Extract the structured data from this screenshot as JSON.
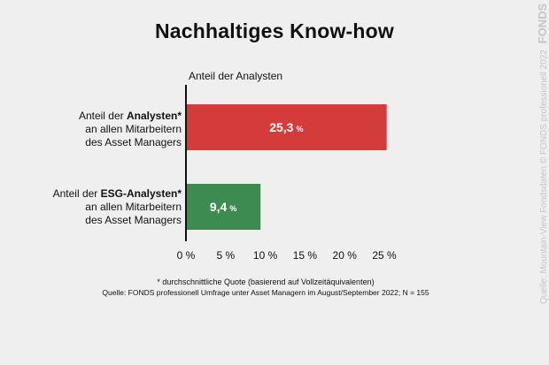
{
  "title": "Nachhaltiges Know-how",
  "chart_data": {
    "type": "bar",
    "orientation": "horizontal",
    "subtitle": "Anteil der Analysten",
    "categories": [
      {
        "prefix": "Anteil der ",
        "bold": "Analysten*",
        "line2": "an allen Mitarbeitern",
        "line3": "des Asset Managers"
      },
      {
        "prefix": "Anteil der ",
        "bold": "ESG-Analysten*",
        "line2": "an allen Mitarbeitern",
        "line3": "des Asset Managers"
      }
    ],
    "values": [
      25.3,
      9.4
    ],
    "value_labels": [
      "25,3",
      "9,4"
    ],
    "unit": "%",
    "colors": [
      "#d43b3b",
      "#3e8b52"
    ],
    "xlim": [
      0,
      25
    ],
    "xticks": [
      0,
      5,
      10,
      15,
      20,
      25
    ],
    "xtick_labels": [
      "0 %",
      "5 %",
      "10 %",
      "15 %",
      "20 %",
      "25 %"
    ],
    "grid": false
  },
  "footnote": "* durchschnittliche Quote (basierend auf Vollzeitäquivalenten)",
  "source": "Quelle: FONDS professionell Umfrage unter Asset Managern im August/September 2022; N = 155",
  "side_credit": "Quelle: Mountain-View Fondsdaten  © FONDS professionell 2022",
  "side_logo": "FONDS"
}
